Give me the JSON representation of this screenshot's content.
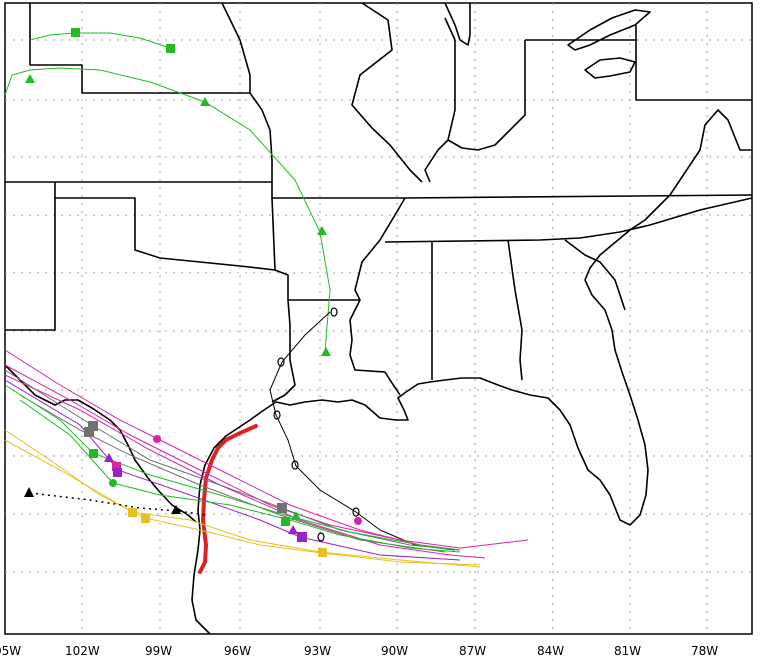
{
  "map": {
    "lon_labels": [
      "05W",
      "102W",
      "99W",
      "96W",
      "93W",
      "90W",
      "87W",
      "84W",
      "81W",
      "78W"
    ],
    "colors": {
      "coast": "#000000",
      "grid": "#a0a0a0",
      "observed": "#dd2222",
      "green": "#22bb22",
      "magenta": "#dd22aa",
      "purple": "#9922cc",
      "yellow": "#e8c020",
      "gray": "#707070",
      "black": "#000000"
    },
    "symbols": [
      "hurricane-marker-icon",
      "square-marker-icon",
      "triangle-marker-icon",
      "circle-marker-icon"
    ]
  }
}
